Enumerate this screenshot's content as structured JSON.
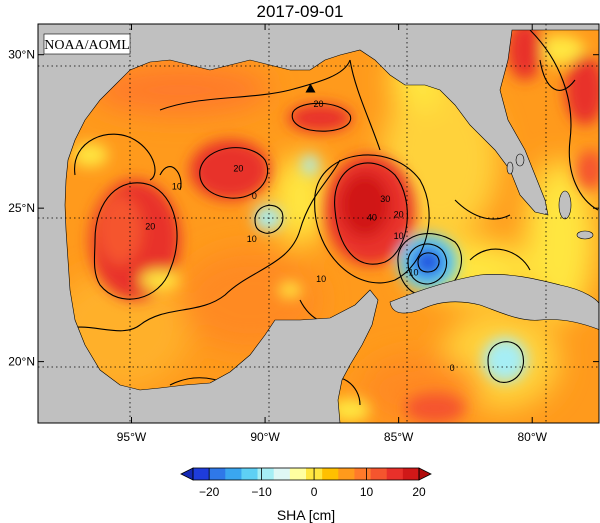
{
  "title": "2017-09-01",
  "credit": "NOAA/AOML",
  "map": {
    "lon_range": [
      -98.5,
      -77.5
    ],
    "lat_range": [
      18,
      31
    ],
    "lon_ticks": [
      {
        "value": -95,
        "label": "95°W"
      },
      {
        "value": -90,
        "label": "90°W"
      },
      {
        "value": -85,
        "label": "85°W"
      },
      {
        "value": -80,
        "label": "80°W"
      }
    ],
    "lat_ticks": [
      {
        "value": 30,
        "label": "30°N"
      },
      {
        "value": 25,
        "label": "25°N"
      },
      {
        "value": 20,
        "label": "20°N"
      }
    ],
    "land_color": "#c0c0c0",
    "grid": "dotted",
    "contour_labels": [
      {
        "text": "20",
        "lon": -94.3,
        "lat": 24.3
      },
      {
        "text": "10",
        "lon": -93.3,
        "lat": 25.6
      },
      {
        "text": "20",
        "lon": -91.0,
        "lat": 26.2
      },
      {
        "text": "10",
        "lon": -90.5,
        "lat": 23.9
      },
      {
        "text": "0",
        "lon": -90.4,
        "lat": 25.3
      },
      {
        "text": "10",
        "lon": -87.9,
        "lat": 22.6
      },
      {
        "text": "20",
        "lon": -88.0,
        "lat": 28.3
      },
      {
        "text": "40",
        "lon": -86.0,
        "lat": 24.6
      },
      {
        "text": "30",
        "lon": -85.5,
        "lat": 25.2
      },
      {
        "text": "20",
        "lon": -85.0,
        "lat": 24.7
      },
      {
        "text": "10",
        "lon": -85.0,
        "lat": 24.0
      },
      {
        "text": "-10",
        "lon": -84.5,
        "lat": 22.8
      },
      {
        "text": "0",
        "lon": -83.0,
        "lat": 19.7
      }
    ],
    "marker": {
      "lon": -88.3,
      "lat": 28.9,
      "shape": "triangle"
    }
  },
  "colorbar": {
    "ticks": [
      "−20",
      "−10",
      "0",
      "10",
      "20"
    ],
    "label": "SHA [cm]",
    "colors": [
      "#1e3cdc",
      "#2f78e8",
      "#3aa6f0",
      "#5ed0f5",
      "#a6eef5",
      "#dff7f5",
      "#ffffa0",
      "#ffe640",
      "#ffc000",
      "#ff9a1c",
      "#ff7a2a",
      "#f5552e",
      "#e8302a",
      "#d01818"
    ]
  }
}
